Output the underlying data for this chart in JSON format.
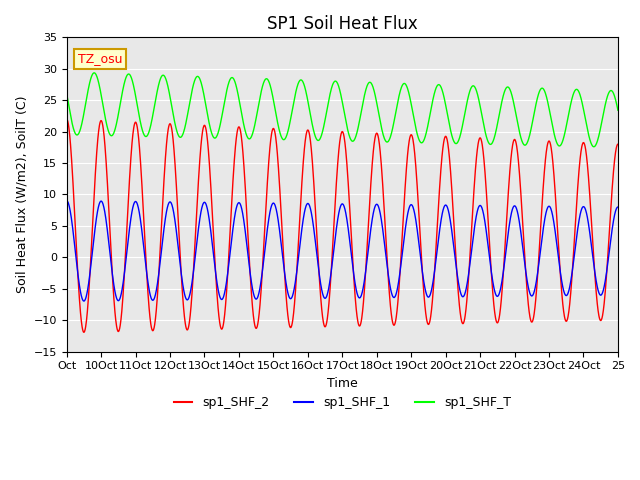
{
  "title": "SP1 Soil Heat Flux",
  "xlabel": "Time",
  "ylabel": "Soil Heat Flux (W/m2), SoilT (C)",
  "ylim": [
    -15,
    35
  ],
  "xlim": [
    0,
    24
  ],
  "xtick_labels": [
    "Oct",
    "10Oct",
    "11Oct",
    "12Oct",
    "13Oct",
    "14Oct",
    "15Oct",
    "16Oct",
    "17Oct",
    "18Oct",
    "19Oct",
    "20Oct",
    "21Oct",
    "22Oct",
    "23Oct",
    "24Oct",
    "25"
  ],
  "xtick_positions": [
    0,
    1,
    2,
    3,
    4,
    5,
    6,
    7,
    8,
    9,
    10,
    11,
    12,
    13,
    14,
    15,
    16
  ],
  "ytick_positions": [
    -15,
    -10,
    -5,
    0,
    5,
    10,
    15,
    20,
    25,
    30,
    35
  ],
  "line_colors": [
    "red",
    "blue",
    "green"
  ],
  "legend_labels": [
    "sp1_SHF_2",
    "sp1_SHF_1",
    "sp1_SHF_T"
  ],
  "tz_label": "TZ_osu",
  "bg_color": "#e8e8e8",
  "grid_color": "white",
  "period": 2.0,
  "n_cycles": 15,
  "shf2_amp_start": 18,
  "shf2_amp_end": 18,
  "shf2_min": -10,
  "shf2_max": 24,
  "shf1_amp": 8,
  "shf1_min": -8,
  "shft_min": 18,
  "shft_max": 30
}
